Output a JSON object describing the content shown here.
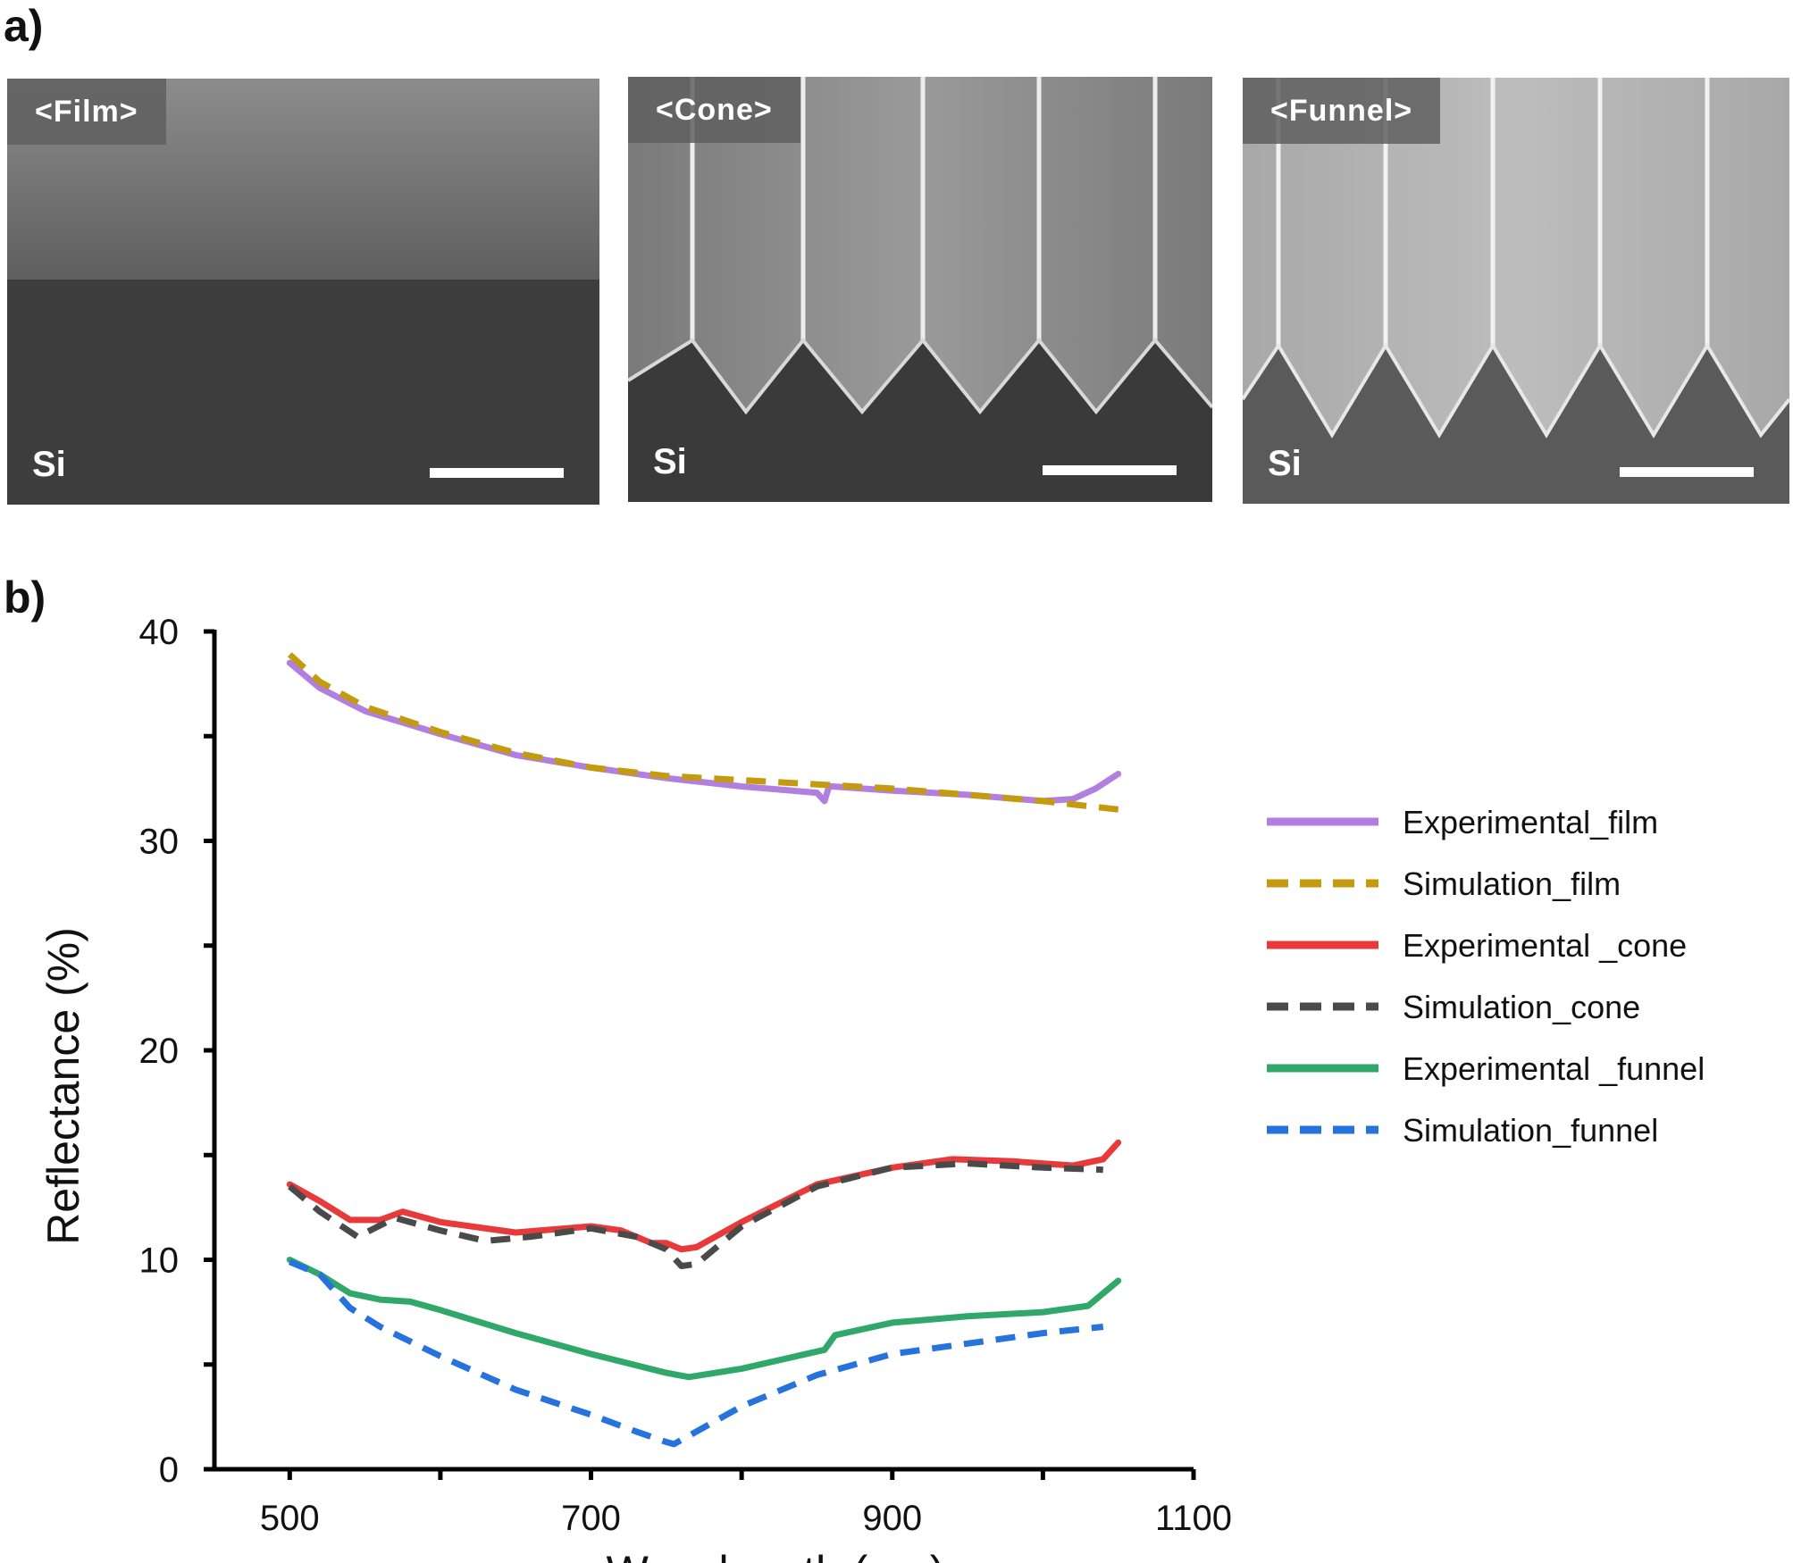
{
  "panel_a": {
    "label": "a)",
    "images": [
      {
        "tag": "<Film>",
        "substrate": "Si",
        "structure": "film"
      },
      {
        "tag": "<Cone>",
        "substrate": "Si",
        "structure": "cone"
      },
      {
        "tag": "<Funnel>",
        "substrate": "Si",
        "structure": "funnel"
      }
    ]
  },
  "panel_b": {
    "label": "b)"
  },
  "chart_data": {
    "type": "line",
    "title": "",
    "xlabel": "Wavelength (nm)",
    "ylabel": "Reflectance (%)",
    "xlim": [
      450,
      1100
    ],
    "ylim": [
      0,
      40
    ],
    "xticks": [
      500,
      700,
      900,
      1100
    ],
    "yticks": [
      0,
      10,
      20,
      30,
      40
    ],
    "grid": false,
    "legend_position": "right",
    "series": [
      {
        "name": "Experimental_film",
        "color": "#b07fe0",
        "dash": "solid",
        "x": [
          500,
          520,
          550,
          600,
          650,
          700,
          750,
          800,
          850,
          855,
          858,
          860,
          900,
          950,
          1000,
          1020,
          1035,
          1050
        ],
        "y": [
          38.5,
          37.3,
          36.2,
          35.1,
          34.1,
          33.5,
          33.0,
          32.6,
          32.3,
          31.9,
          32.6,
          32.6,
          32.4,
          32.2,
          31.9,
          32.0,
          32.5,
          33.2
        ]
      },
      {
        "name": "Simulation_film",
        "color": "#c49a0e",
        "dash": "dashed",
        "x": [
          500,
          520,
          550,
          600,
          650,
          700,
          750,
          800,
          850,
          900,
          950,
          1000,
          1025,
          1050
        ],
        "y": [
          38.9,
          37.6,
          36.4,
          35.2,
          34.2,
          33.5,
          33.1,
          32.9,
          32.7,
          32.5,
          32.2,
          31.9,
          31.7,
          31.5
        ]
      },
      {
        "name": "Experimental _cone",
        "color": "#e83a3a",
        "dash": "solid",
        "x": [
          500,
          520,
          540,
          560,
          575,
          600,
          650,
          700,
          720,
          740,
          750,
          760,
          770,
          800,
          850,
          900,
          940,
          980,
          1020,
          1040,
          1050
        ],
        "y": [
          13.6,
          12.8,
          11.9,
          11.9,
          12.3,
          11.8,
          11.3,
          11.6,
          11.4,
          10.8,
          10.8,
          10.5,
          10.6,
          11.8,
          13.6,
          14.4,
          14.8,
          14.7,
          14.5,
          14.8,
          15.6
        ]
      },
      {
        "name": "Simulation_cone",
        "color": "#4a4a4a",
        "dash": "dashed",
        "x": [
          500,
          520,
          545,
          570,
          600,
          630,
          660,
          700,
          730,
          750,
          760,
          770,
          800,
          850,
          900,
          950,
          1000,
          1040
        ],
        "y": [
          13.5,
          12.3,
          11.1,
          12.0,
          11.4,
          10.9,
          11.1,
          11.5,
          11.1,
          10.5,
          9.7,
          9.8,
          11.6,
          13.5,
          14.4,
          14.6,
          14.4,
          14.3
        ]
      },
      {
        "name": "Experimental _funnel",
        "color": "#2fa86a",
        "dash": "solid",
        "x": [
          500,
          520,
          540,
          560,
          580,
          600,
          650,
          700,
          750,
          765,
          800,
          855,
          858,
          862,
          900,
          950,
          1000,
          1030,
          1050
        ],
        "y": [
          10.0,
          9.3,
          8.4,
          8.1,
          8.0,
          7.6,
          6.5,
          5.5,
          4.6,
          4.4,
          4.8,
          5.7,
          6.0,
          6.4,
          7.0,
          7.3,
          7.5,
          7.8,
          9.0
        ]
      },
      {
        "name": "Simulation_funnel",
        "color": "#2673dd",
        "dash": "dashed",
        "x": [
          500,
          520,
          540,
          560,
          600,
          650,
          700,
          730,
          750,
          755,
          770,
          800,
          850,
          900,
          950,
          1000,
          1040
        ],
        "y": [
          9.9,
          9.3,
          7.7,
          6.8,
          5.4,
          3.8,
          2.6,
          1.8,
          1.3,
          1.2,
          1.8,
          3.0,
          4.5,
          5.5,
          6.0,
          6.5,
          6.8
        ]
      }
    ]
  }
}
